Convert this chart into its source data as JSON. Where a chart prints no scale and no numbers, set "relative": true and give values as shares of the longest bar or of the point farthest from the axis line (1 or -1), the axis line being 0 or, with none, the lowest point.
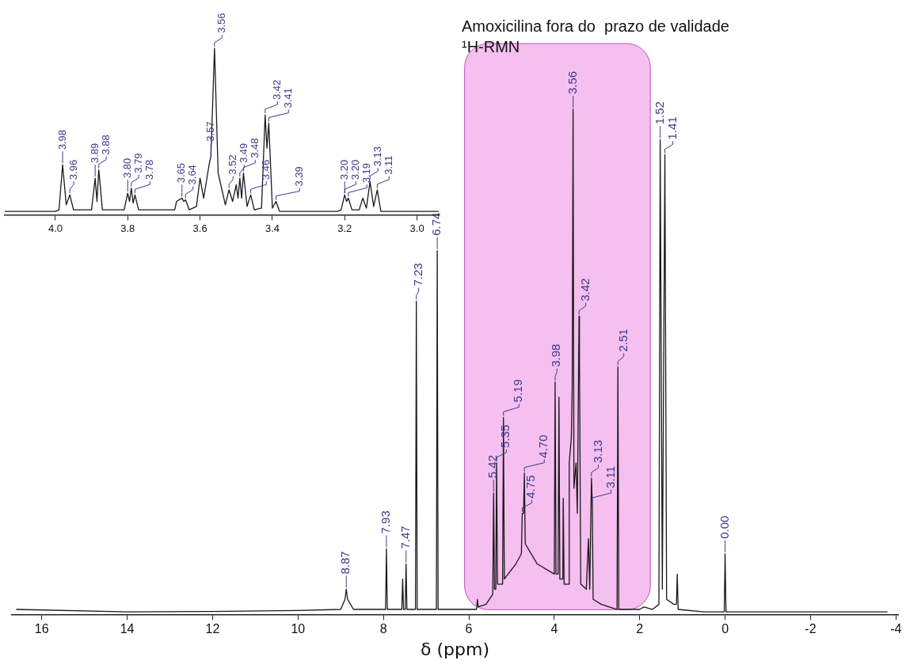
{
  "chart_data": [
    {
      "type": "line",
      "title": "Amoxicilina fora do  prazo de validade",
      "subtitle": "¹H-RMN",
      "xlabel": "δ (ppm)",
      "relative": true,
      "marker": "none",
      "tick_labels": "x",
      "xlim": [
        16.7,
        -4.05
      ],
      "xticks": [
        16,
        14,
        12,
        10,
        8,
        6,
        4,
        2,
        0,
        -2,
        -4
      ],
      "bands": [
        {
          "axis": "x",
          "from": 6.1,
          "to": 1.75,
          "color": "#f5bff0"
        }
      ],
      "series": [
        {
          "color": "#1a1a1a",
          "x": [
            16.6,
            14,
            12,
            10,
            9.0,
            8.9,
            8.87,
            8.84,
            8.7,
            7.95,
            7.93,
            7.91,
            7.57,
            7.55,
            7.53,
            7.49,
            7.47,
            7.45,
            7.25,
            7.23,
            7.21,
            6.76,
            6.74,
            6.72,
            6.0,
            5.82,
            5.8,
            5.78,
            5.6,
            5.44,
            5.42,
            5.4,
            5.37,
            5.35,
            5.33,
            5.21,
            5.19,
            5.17,
            4.9,
            4.77,
            4.75,
            4.72,
            4.7,
            4.68,
            4.4,
            4.0,
            3.98,
            3.96,
            3.91,
            3.89,
            3.87,
            3.8,
            3.79,
            3.77,
            3.66,
            3.65,
            3.6,
            3.58,
            3.56,
            3.54,
            3.49,
            3.46,
            3.42,
            3.41,
            3.38,
            3.25,
            3.2,
            3.17,
            3.13,
            3.11,
            3.09,
            2.9,
            2.53,
            2.51,
            2.49,
            2.0,
            1.9,
            1.7,
            1.55,
            1.52,
            1.47,
            1.41,
            1.37,
            1.2,
            1.14,
            1.12,
            1.1,
            0.5,
            0.02,
            0.0,
            -0.02,
            -2,
            -3.8
          ],
          "values": [
            0.01,
            0.005,
            0.006,
            0.008,
            0.01,
            0.03,
            0.05,
            0.03,
            0.01,
            0.01,
            0.13,
            0.01,
            0.01,
            0.07,
            0.01,
            0.01,
            0.1,
            0.01,
            0.01,
            0.62,
            0.01,
            0.01,
            0.72,
            0.01,
            0.01,
            0.01,
            0.03,
            0.015,
            0.02,
            0.04,
            0.24,
            0.05,
            0.05,
            0.3,
            0.06,
            0.06,
            0.39,
            0.07,
            0.1,
            0.12,
            0.2,
            0.2,
            0.28,
            0.14,
            0.1,
            0.08,
            0.46,
            0.08,
            0.08,
            0.43,
            0.07,
            0.07,
            0.23,
            0.06,
            0.06,
            0.3,
            0.35,
            0.45,
            1.0,
            0.25,
            0.3,
            0.2,
            0.59,
            0.5,
            0.06,
            0.05,
            0.15,
            0.05,
            0.27,
            0.22,
            0.03,
            0.02,
            0.01,
            0.49,
            0.01,
            0.01,
            0.015,
            0.01,
            0.02,
            0.94,
            0.05,
            0.91,
            0.03,
            0.02,
            0.02,
            0.08,
            0.01,
            0.005,
            0.005,
            0.12,
            0.005,
            0.005,
            0.005
          ]
        }
      ],
      "annotations": [
        {
          "text": "8.87",
          "x": 8.87,
          "y": 0.05
        },
        {
          "text": "7.93",
          "x": 7.93,
          "y": 0.13
        },
        {
          "text": "7.47",
          "x": 7.47,
          "y": 0.1
        },
        {
          "text": "7.23",
          "x": 7.23,
          "y": 0.62
        },
        {
          "text": "6.74",
          "x": 6.74,
          "y": 0.72
        },
        {
          "text": "5.42",
          "x": 5.42,
          "y": 0.24
        },
        {
          "text": "5.35",
          "x": 5.35,
          "y": 0.3
        },
        {
          "text": "5.19",
          "x": 5.19,
          "y": 0.39
        },
        {
          "text": "4.75",
          "x": 4.75,
          "y": 0.2
        },
        {
          "text": "4.70",
          "x": 4.7,
          "y": 0.28
        },
        {
          "text": "3.98",
          "x": 3.98,
          "y": 0.46
        },
        {
          "text": "3.56",
          "x": 3.56,
          "y": 1.0
        },
        {
          "text": "3.42",
          "x": 3.42,
          "y": 0.59
        },
        {
          "text": "3.13",
          "x": 3.13,
          "y": 0.27
        },
        {
          "text": "3.11",
          "x": 3.11,
          "y": 0.22
        },
        {
          "text": "2.51",
          "x": 2.51,
          "y": 0.49
        },
        {
          "text": "1.52",
          "x": 1.52,
          "y": 0.94
        },
        {
          "text": "1.41",
          "x": 1.41,
          "y": 0.91
        },
        {
          "text": "0.00",
          "x": 0.0,
          "y": 0.12
        }
      ]
    },
    {
      "type": "line",
      "relative": true,
      "marker": "none",
      "tick_labels": "x",
      "xlim": [
        4.14,
        2.94
      ],
      "xticks": [
        {
          "value": 4,
          "label": "4.0"
        },
        3.8,
        3.6,
        3.4,
        3.2,
        {
          "value": 3,
          "label": "3.0"
        }
      ],
      "series": [
        {
          "color": "#1a1a1a",
          "x": [
            4.14,
            4.0,
            3.99,
            3.98,
            3.97,
            3.96,
            3.95,
            3.9,
            3.89,
            3.885,
            3.88,
            3.87,
            3.81,
            3.8,
            3.795,
            3.79,
            3.785,
            3.78,
            3.77,
            3.67,
            3.665,
            3.65,
            3.645,
            3.64,
            3.63,
            3.61,
            3.6,
            3.59,
            3.575,
            3.57,
            3.56,
            3.55,
            3.53,
            3.52,
            3.51,
            3.5,
            3.495,
            3.49,
            3.485,
            3.48,
            3.47,
            3.46,
            3.45,
            3.43,
            3.42,
            3.415,
            3.41,
            3.4,
            3.39,
            3.38,
            3.22,
            3.21,
            3.2,
            3.195,
            3.19,
            3.18,
            3.16,
            3.15,
            3.14,
            3.13,
            3.12,
            3.11,
            3.1,
            2.94
          ],
          "values": [
            0.02,
            0.02,
            0.03,
            0.3,
            0.06,
            0.12,
            0.03,
            0.03,
            0.22,
            0.08,
            0.27,
            0.03,
            0.03,
            0.13,
            0.08,
            0.16,
            0.07,
            0.12,
            0.03,
            0.03,
            0.08,
            0.1,
            0.08,
            0.09,
            0.03,
            0.05,
            0.22,
            0.1,
            0.3,
            0.35,
            1.0,
            0.25,
            0.06,
            0.15,
            0.08,
            0.18,
            0.1,
            0.22,
            0.1,
            0.25,
            0.05,
            0.12,
            0.03,
            0.04,
            0.6,
            0.4,
            0.55,
            0.04,
            0.08,
            0.02,
            0.02,
            0.03,
            0.12,
            0.08,
            0.1,
            0.03,
            0.03,
            0.1,
            0.04,
            0.2,
            0.05,
            0.15,
            0.02,
            0.02
          ]
        }
      ],
      "annotations": [
        {
          "text": "3.98",
          "x": 3.98,
          "y": 0.3
        },
        {
          "text": "3.96",
          "x": 3.96,
          "y": 0.12
        },
        {
          "text": "3.89",
          "x": 3.89,
          "y": 0.22
        },
        {
          "text": "3.88",
          "x": 3.88,
          "y": 0.27
        },
        {
          "text": "3.80",
          "x": 3.8,
          "y": 0.13
        },
        {
          "text": "3.79",
          "x": 3.79,
          "y": 0.16
        },
        {
          "text": "3.78",
          "x": 3.78,
          "y": 0.12
        },
        {
          "text": "3.65",
          "x": 3.65,
          "y": 0.1
        },
        {
          "text": "3.64",
          "x": 3.64,
          "y": 0.09
        },
        {
          "text": "3.57",
          "x": 3.57,
          "y": 0.35
        },
        {
          "text": "3.56",
          "x": 3.56,
          "y": 1.0
        },
        {
          "text": "3.52",
          "x": 3.52,
          "y": 0.15
        },
        {
          "text": "3.49",
          "x": 3.49,
          "y": 0.22
        },
        {
          "text": "3.48",
          "x": 3.48,
          "y": 0.25
        },
        {
          "text": "3.46",
          "x": 3.46,
          "y": 0.12
        },
        {
          "text": "3.42",
          "x": 3.42,
          "y": 0.6
        },
        {
          "text": "3.41",
          "x": 3.41,
          "y": 0.55
        },
        {
          "text": "3.39",
          "x": 3.39,
          "y": 0.08
        },
        {
          "text": "3.20",
          "x": 3.2,
          "y": 0.12
        },
        {
          "text": "3.20",
          "x": 3.2,
          "y": 0.12
        },
        {
          "text": "3.19",
          "x": 3.19,
          "y": 0.1
        },
        {
          "text": "3.13",
          "x": 3.13,
          "y": 0.2
        },
        {
          "text": "3.11",
          "x": 3.11,
          "y": 0.15
        }
      ]
    }
  ]
}
